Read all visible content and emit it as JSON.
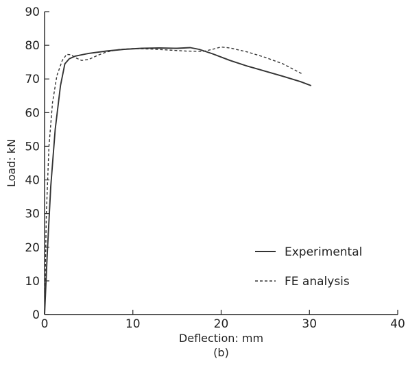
{
  "chart_data": {
    "type": "line",
    "title": "",
    "caption": "(b)",
    "xlabel": "Deflection: mm",
    "ylabel": "Load: kN",
    "xlim": [
      0,
      40
    ],
    "ylim": [
      0,
      90
    ],
    "xticks": [
      "0",
      "10",
      "20",
      "30",
      "40"
    ],
    "yticks": [
      "0",
      "10",
      "20",
      "30",
      "40",
      "50",
      "60",
      "70",
      "80",
      "90"
    ],
    "grid": false,
    "legend_position": "bottom-right",
    "series": [
      {
        "name": "Experimental",
        "style": "solid",
        "x": [
          0,
          0.3,
          0.7,
          1.2,
          1.8,
          2.3,
          2.8,
          3.5,
          5,
          7,
          9,
          11,
          13,
          15,
          16.5,
          17.5,
          19,
          21,
          23,
          25,
          27,
          29,
          30.2
        ],
        "y": [
          0,
          18,
          38,
          55,
          68,
          74.5,
          76,
          76.8,
          77.6,
          78.3,
          78.8,
          79.1,
          79.2,
          79.1,
          79.3,
          78.8,
          77.5,
          75.5,
          73.8,
          72.3,
          70.8,
          69.2,
          68
        ]
      },
      {
        "name": "FE analysis",
        "style": "dashed",
        "x": [
          0,
          0.2,
          0.5,
          0.9,
          1.4,
          2,
          2.5,
          3,
          3.5,
          4.2,
          5,
          6,
          7,
          8.5,
          10,
          12,
          14,
          16,
          18,
          19,
          20,
          21,
          23,
          25,
          27,
          29.2
        ],
        "y": [
          0,
          30,
          50,
          63,
          71,
          75.5,
          77.3,
          77.2,
          76.3,
          75.5,
          75.8,
          77,
          78,
          78.8,
          79,
          78.9,
          78.6,
          78.3,
          78.2,
          78.8,
          79.5,
          79.2,
          78,
          76.4,
          74.5,
          71.5
        ]
      }
    ]
  }
}
